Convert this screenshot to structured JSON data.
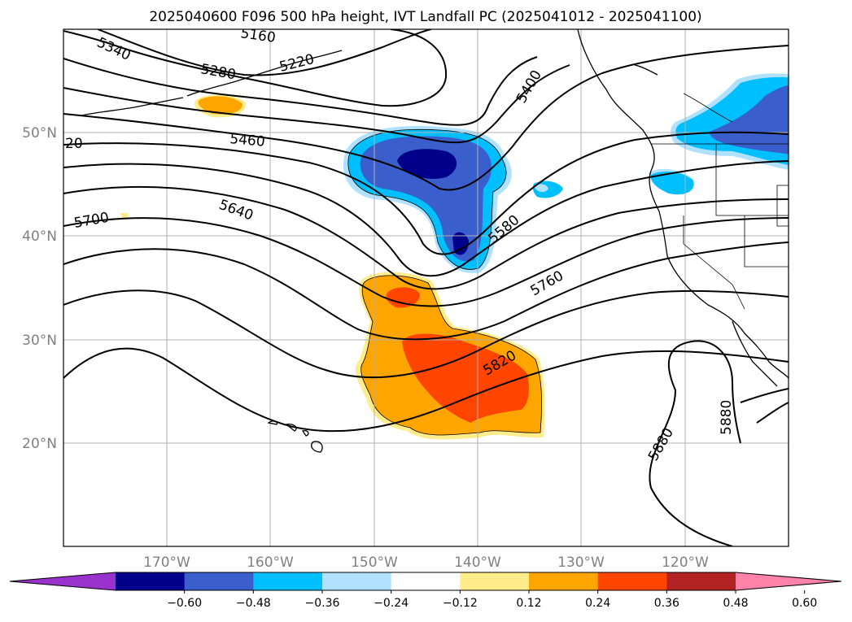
{
  "title": "2025040600 F096 500 hPa height, IVT Landfall PC (2025041012 - 2025041100)",
  "lat_labels": [
    "50°N",
    "40°N",
    "30°N",
    "20°N"
  ],
  "lon_labels": [
    "170°W",
    "160°W",
    "150°W",
    "140°W",
    "130°W",
    "120°W"
  ],
  "contour_labels": [
    "5160",
    "5340",
    "5280",
    "5220",
    "5400",
    "5460",
    "20",
    "5640",
    "5700",
    "5580",
    "5760",
    "5820",
    "5880",
    "5880"
  ],
  "colorbar": {
    "ticks": [
      "−0.60",
      "−0.48",
      "−0.36",
      "−0.24",
      "−0.12",
      "0.12",
      "0.24",
      "0.36",
      "0.48",
      "0.60"
    ],
    "colors": [
      "#9932cc",
      "#00008b",
      "#3a5fcd",
      "#00bfff",
      "#b0e2ff",
      "#ffffff",
      "#ffec8b",
      "#ffa500",
      "#ff4500",
      "#b22222",
      "#ff82ab"
    ]
  },
  "shading_colors": {
    "neg_light": "#b0e2ff",
    "neg_mid": "#00bfff",
    "neg_strong": "#3a5fcd",
    "neg_max": "#00008b",
    "pos_light": "#ffec8b",
    "pos_mid": "#ffa500",
    "pos_strong": "#ff4500"
  }
}
